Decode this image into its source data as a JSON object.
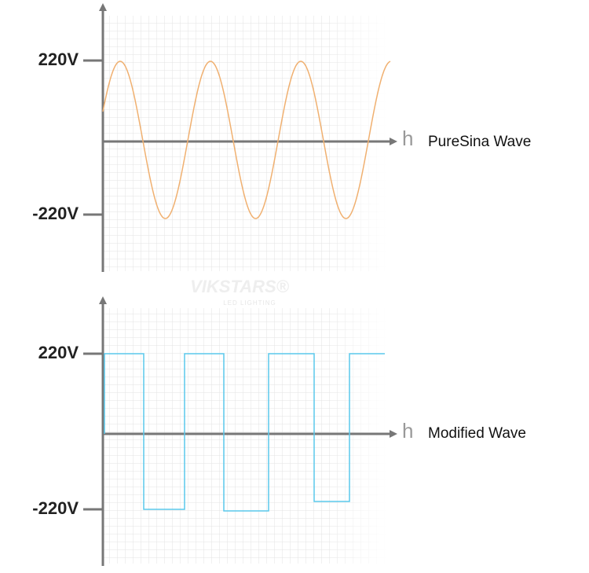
{
  "panels": [
    {
      "y_labels": [
        "220V",
        "-220V"
      ],
      "axis_label": "h",
      "wave_name": "PureSina Wave"
    },
    {
      "y_labels": [
        "220V",
        "-220V"
      ],
      "axis_label": "h",
      "wave_name": "Modified Wave"
    }
  ],
  "watermark": {
    "brand": "VIKSTARS®",
    "tagline": "LED LIGHTING"
  }
}
